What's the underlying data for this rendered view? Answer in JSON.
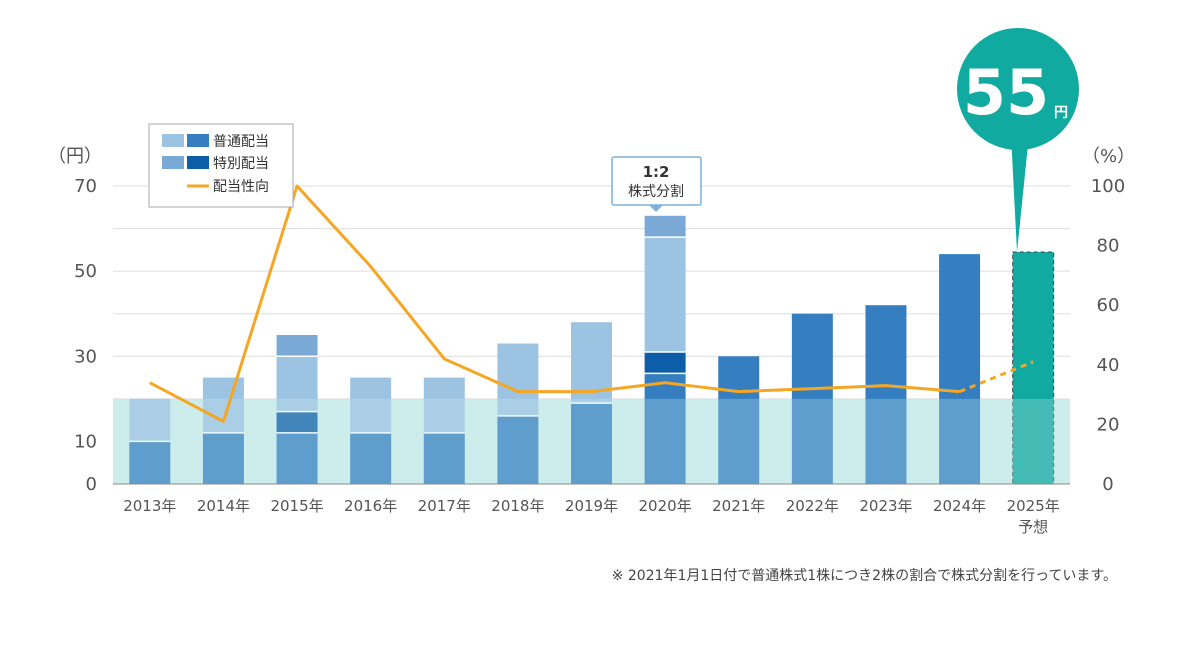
{
  "chart_data": {
    "type": "bar",
    "y_left_unit": "（円）",
    "y_right_unit": "（%）",
    "y_left_ticks": [
      "70",
      "50",
      "30",
      "10",
      "0"
    ],
    "y_right_ticks": [
      "100",
      "80",
      "60",
      "40",
      "20",
      "0"
    ],
    "ylim": [
      0,
      70
    ],
    "ylim_right": [
      0,
      100
    ],
    "categories": [
      "2013年",
      "2014年",
      "2015年",
      "2016年",
      "2017年",
      "2018年",
      "2019年",
      "2020年",
      "2021年",
      "2022年",
      "2023年",
      "2024年",
      "2025年"
    ],
    "category_sublabels": [
      "",
      "",
      "",
      "",
      "",
      "",
      "",
      "",
      "",
      "",
      "",
      "",
      "予想"
    ],
    "series": [
      {
        "name": "普通配当",
        "values": [
          20,
          25,
          25,
          25,
          25,
          33,
          38,
          53,
          30,
          40,
          42,
          54,
          54.5
        ]
      },
      {
        "name": "特別配当",
        "values": [
          0,
          0,
          10,
          0,
          0,
          0,
          0,
          10,
          0,
          0,
          0,
          0,
          0
        ]
      },
      {
        "name": "配当性向",
        "values": [
          34,
          21,
          100,
          73,
          42,
          31,
          31,
          34,
          31,
          32,
          33,
          31,
          41
        ]
      }
    ],
    "forecast_index": 12,
    "shaded_band_max": 20,
    "legend": [
      {
        "label": "普通配当",
        "key": "regular"
      },
      {
        "label": "特別配当",
        "key": "special"
      },
      {
        "label": "配当性向",
        "key": "payout"
      }
    ],
    "legend_position": "top-left",
    "split_callout": {
      "line1": "1:2",
      "line2": "株式分割"
    },
    "forecast_callout": {
      "value": "55",
      "unit": "円"
    },
    "note": "※  2021年1月1日付で普通株式1株につき2株の割合で株式分割を行っています。",
    "colors": {
      "regular_light": "#9dc3e3",
      "regular_dark": "#357fc1",
      "special_light": "#7aa9d6",
      "special_dark": "#0d5ea8",
      "payout_line": "#f5a623",
      "forecast": "#10aaa0",
      "band": "#cdeeee"
    }
  }
}
